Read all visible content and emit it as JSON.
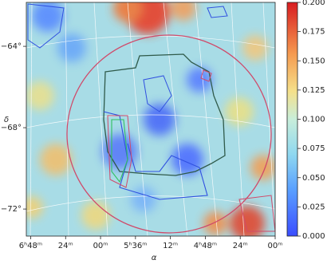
{
  "chart_data": {
    "type": "heatmap",
    "xlabel": "α",
    "ylabel": "δ",
    "xlim": [
      6.85,
      4.0
    ],
    "xticks": [
      {
        "value": 6.8,
        "label": "6ʰ48ᵐ"
      },
      {
        "value": 6.4,
        "label": "24ᵐ"
      },
      {
        "value": 6.0,
        "label": "00ᵐ"
      },
      {
        "value": 5.6,
        "label": "5ʰ36ᵐ"
      },
      {
        "value": 5.2,
        "label": "12ᵐ"
      },
      {
        "value": 4.8,
        "label": "4ʰ48ᵐ"
      },
      {
        "value": 4.4,
        "label": "24ᵐ"
      },
      {
        "value": 4.0,
        "label": "00ᵐ"
      }
    ],
    "ylim": [
      -73.33,
      -61.84
    ],
    "yticks": [
      {
        "value": -64,
        "label": "−64°"
      },
      {
        "value": -68,
        "label": "−68°"
      },
      {
        "value": -72,
        "label": "−72°"
      }
    ],
    "clim": [
      0,
      0.2
    ],
    "cticks": [
      {
        "value": 0,
        "label": "0.000"
      },
      {
        "value": 0.025,
        "label": "0.025"
      },
      {
        "value": 0.05,
        "label": "0.050"
      },
      {
        "value": 0.075,
        "label": "0.075"
      },
      {
        "value": 0.1,
        "label": "0.100"
      },
      {
        "value": 0.125,
        "label": "0.125"
      },
      {
        "value": 0.15,
        "label": "0.150"
      },
      {
        "value": 0.175,
        "label": "0.175"
      },
      {
        "value": 0.2,
        "label": "0.200"
      }
    ]
  }
}
